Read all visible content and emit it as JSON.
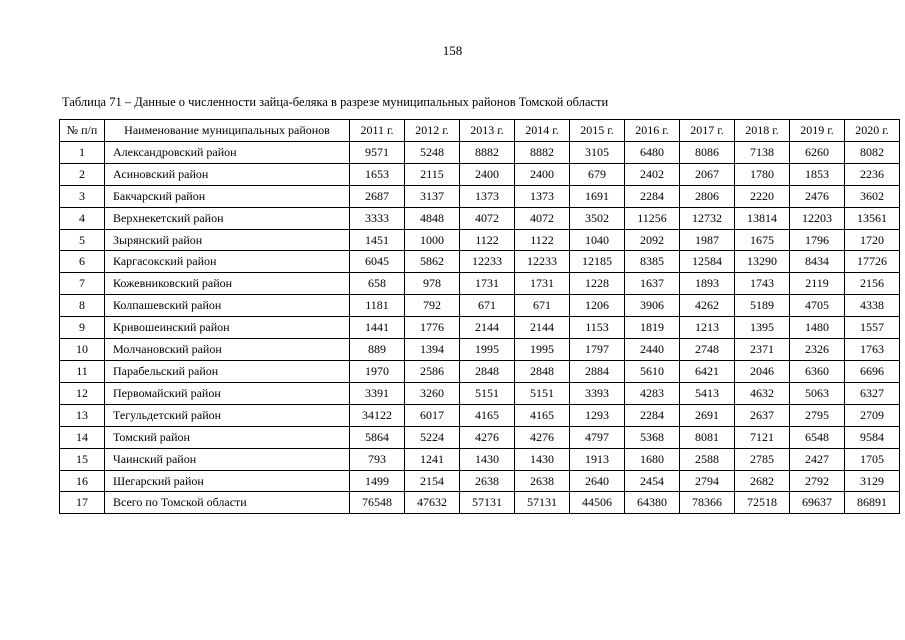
{
  "page": {
    "number": "158"
  },
  "table": {
    "caption": "Таблица 71 – Данные о численности зайца-беляка в разрезе муниципальных районов Томской области",
    "headers": [
      "№ п/п",
      "Наименование муниципальных районов",
      "2011 г.",
      "2012 г.",
      "2013 г.",
      "2014 г.",
      "2015 г.",
      "2016 г.",
      "2017 г.",
      "2018 г.",
      "2019 г.",
      "2020 г."
    ],
    "rows": [
      {
        "num": "1",
        "name": "Александровский район",
        "values": [
          "9571",
          "5248",
          "8882",
          "8882",
          "3105",
          "6480",
          "8086",
          "7138",
          "6260",
          "8082"
        ]
      },
      {
        "num": "2",
        "name": "Асиновский район",
        "values": [
          "1653",
          "2115",
          "2400",
          "2400",
          "679",
          "2402",
          "2067",
          "1780",
          "1853",
          "2236"
        ]
      },
      {
        "num": "3",
        "name": "Бакчарский район",
        "values": [
          "2687",
          "3137",
          "1373",
          "1373",
          "1691",
          "2284",
          "2806",
          "2220",
          "2476",
          "3602"
        ]
      },
      {
        "num": "4",
        "name": "Верхнекетский район",
        "values": [
          "3333",
          "4848",
          "4072",
          "4072",
          "3502",
          "11256",
          "12732",
          "13814",
          "12203",
          "13561"
        ]
      },
      {
        "num": "5",
        "name": "Зырянский район",
        "values": [
          "1451",
          "1000",
          "1122",
          "1122",
          "1040",
          "2092",
          "1987",
          "1675",
          "1796",
          "1720"
        ]
      },
      {
        "num": "6",
        "name": "Каргасокский район",
        "values": [
          "6045",
          "5862",
          "12233",
          "12233",
          "12185",
          "8385",
          "12584",
          "13290",
          "8434",
          "17726"
        ]
      },
      {
        "num": "7",
        "name": "Кожевниковский район",
        "values": [
          "658",
          "978",
          "1731",
          "1731",
          "1228",
          "1637",
          "1893",
          "1743",
          "2119",
          "2156"
        ]
      },
      {
        "num": "8",
        "name": "Колпашевский район",
        "values": [
          "1181",
          "792",
          "671",
          "671",
          "1206",
          "3906",
          "4262",
          "5189",
          "4705",
          "4338"
        ]
      },
      {
        "num": "9",
        "name": "Кривошеинский район",
        "values": [
          "1441",
          "1776",
          "2144",
          "2144",
          "1153",
          "1819",
          "1213",
          "1395",
          "1480",
          "1557"
        ]
      },
      {
        "num": "10",
        "name": "Молчановский район",
        "values": [
          "889",
          "1394",
          "1995",
          "1995",
          "1797",
          "2440",
          "2748",
          "2371",
          "2326",
          "1763"
        ]
      },
      {
        "num": "11",
        "name": "Парабельский район",
        "values": [
          "1970",
          "2586",
          "2848",
          "2848",
          "2884",
          "5610",
          "6421",
          "2046",
          "6360",
          "6696"
        ]
      },
      {
        "num": "12",
        "name": "Первомайский район",
        "values": [
          "3391",
          "3260",
          "5151",
          "5151",
          "3393",
          "4283",
          "5413",
          "4632",
          "5063",
          "6327"
        ]
      },
      {
        "num": "13",
        "name": "Тегульдетский район",
        "values": [
          "34122",
          "6017",
          "4165",
          "4165",
          "1293",
          "2284",
          "2691",
          "2637",
          "2795",
          "2709"
        ]
      },
      {
        "num": "14",
        "name": "Томский район",
        "values": [
          "5864",
          "5224",
          "4276",
          "4276",
          "4797",
          "5368",
          "8081",
          "7121",
          "6548",
          "9584"
        ]
      },
      {
        "num": "15",
        "name": "Чаинский район",
        "values": [
          "793",
          "1241",
          "1430",
          "1430",
          "1913",
          "1680",
          "2588",
          "2785",
          "2427",
          "1705"
        ]
      },
      {
        "num": "16",
        "name": "Шегарский район",
        "values": [
          "1499",
          "2154",
          "2638",
          "2638",
          "2640",
          "2454",
          "2794",
          "2682",
          "2792",
          "3129"
        ]
      },
      {
        "num": "17",
        "name": "Всего по Томской области",
        "values": [
          "76548",
          "47632",
          "57131",
          "57131",
          "44506",
          "64380",
          "78366",
          "72518",
          "69637",
          "86891"
        ]
      }
    ]
  }
}
